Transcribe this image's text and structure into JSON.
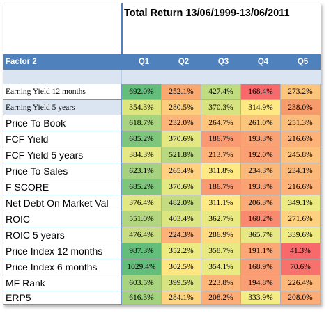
{
  "title": "Total Return 13/06/1999-13/06/2011",
  "header": {
    "factor_label": "Factor 2",
    "quintiles": [
      "Q1",
      "Q2",
      "Q3",
      "Q4",
      "Q5"
    ]
  },
  "rows": [
    {
      "label": "Earning Yield 12 months",
      "values": [
        "692.0%",
        "252.1%",
        "427.4%",
        "168.4%",
        "273.2%"
      ],
      "colors": [
        "#63be7b",
        "#f9a870",
        "#c0dc80",
        "#f8696b",
        "#fcc57c"
      ]
    },
    {
      "label": "Earning Yield 5 years",
      "values": [
        "354.3%",
        "280.5%",
        "370.3%",
        "314.9%",
        "238.0%"
      ],
      "colors": [
        "#dde57f",
        "#fdcd7e",
        "#d6e380",
        "#fee982",
        "#f69b6c"
      ]
    },
    {
      "label": "Price To Book",
      "values": [
        "618.7%",
        "232.0%",
        "264.7%",
        "261.0%",
        "251.3%"
      ],
      "colors": [
        "#a9d47f",
        "#fbb479",
        "#fdc67c",
        "#fcc57c",
        "#fbbd7b"
      ]
    },
    {
      "label": "FCF Yield",
      "values": [
        "685.2%",
        "370.6%",
        "186.7%",
        "193.3%",
        "216.6%"
      ],
      "colors": [
        "#7fc67d",
        "#e4e883",
        "#fa9a73",
        "#fba275",
        "#fcb279"
      ]
    },
    {
      "label": "FCF Yield 5 years",
      "values": [
        "384.3%",
        "521.8%",
        "213.7%",
        "192.0%",
        "245.8%"
      ],
      "colors": [
        "#e5e883",
        "#b8d881",
        "#fcb279",
        "#fb9f75",
        "#fdc27c"
      ]
    },
    {
      "label": "Price To Sales",
      "values": [
        "623.1%",
        "265.4%",
        "311.8%",
        "234.3%",
        "234.1%"
      ],
      "colors": [
        "#a6d27f",
        "#fed07f",
        "#fee984",
        "#fbb979",
        "#fbb979"
      ]
    },
    {
      "label": "F SCORE",
      "values": [
        "685.2%",
        "370.6%",
        "186.7%",
        "193.3%",
        "216.6%"
      ],
      "colors": [
        "#7fc67d",
        "#e4e883",
        "#fa9a73",
        "#fba275",
        "#fcb279"
      ]
    },
    {
      "label": "Net Debt On Market Val",
      "values": [
        "376.4%",
        "482.0%",
        "311.1%",
        "206.3%",
        "349.1%"
      ],
      "colors": [
        "#e2e782",
        "#c4db80",
        "#fee984",
        "#fbab77",
        "#ebea83"
      ]
    },
    {
      "label": "ROIC",
      "values": [
        "551.0%",
        "403.4%",
        "362.7%",
        "168.2%",
        "271.6%"
      ],
      "colors": [
        "#b2d57f",
        "#dbe582",
        "#e9e983",
        "#f98a6f",
        "#fdd17f"
      ]
    },
    {
      "label": "ROIC 5 years",
      "values": [
        "476.4%",
        "224.3%",
        "286.9%",
        "365.7%",
        "339.6%"
      ],
      "colors": [
        "#c9dc80",
        "#fbb178",
        "#feda80",
        "#e7e883",
        "#f0ea83"
      ]
    },
    {
      "label": "Price Index 12 months",
      "values": [
        "987.3%",
        "352.2%",
        "358.7%",
        "191.1%",
        "41.3%"
      ],
      "colors": [
        "#63be7b",
        "#ebea83",
        "#e8e983",
        "#fba776",
        "#f8696b"
      ]
    },
    {
      "label": "Price Index 6 months",
      "values": [
        "1029.4%",
        "302.5%",
        "354.1%",
        "168.9%",
        "70.6%"
      ],
      "colors": [
        "#63be7b",
        "#fee683",
        "#eaea83",
        "#fa9d74",
        "#f8726d"
      ]
    },
    {
      "label": "MF Rank",
      "values": [
        "603.5%",
        "399.5%",
        "223.8%",
        "194.8%",
        "226.4%"
      ],
      "colors": [
        "#a9d47f",
        "#d8e482",
        "#fcb67a",
        "#fa9f75",
        "#fcb87a"
      ]
    },
    {
      "label": "ERP5",
      "values": [
        "616.3%",
        "284.1%",
        "208.2%",
        "333.9%",
        "208.0%"
      ],
      "colors": [
        "#a3d27f",
        "#fdd47f",
        "#fbac77",
        "#f4eb84",
        "#fbac77"
      ]
    }
  ]
}
